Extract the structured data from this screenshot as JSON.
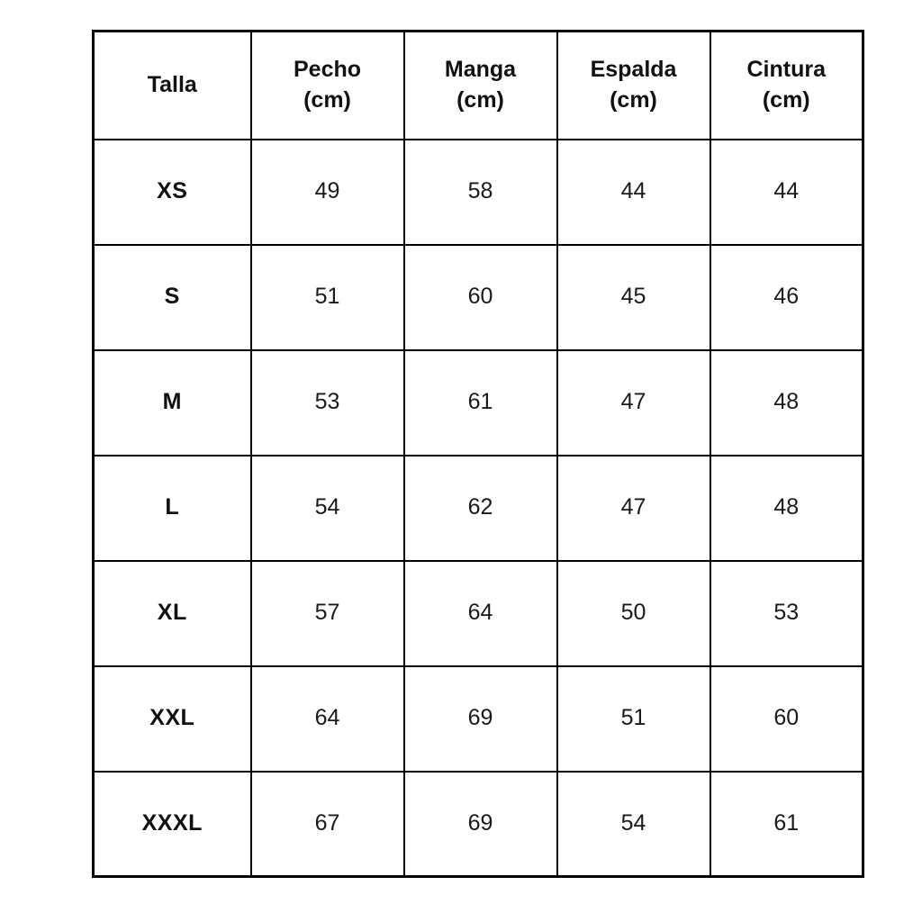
{
  "table": {
    "columns": [
      {
        "label": "Talla"
      },
      {
        "label": "Pecho\n(cm)"
      },
      {
        "label": "Manga\n(cm)"
      },
      {
        "label": "Espalda\n(cm)"
      },
      {
        "label": "Cintura\n(cm)"
      }
    ],
    "rows": [
      {
        "size": "XS",
        "values": [
          "49",
          "58",
          "44",
          "44"
        ]
      },
      {
        "size": "S",
        "values": [
          "51",
          "60",
          "45",
          "46"
        ]
      },
      {
        "size": "M",
        "values": [
          "53",
          "61",
          "47",
          "48"
        ]
      },
      {
        "size": "L",
        "values": [
          "54",
          "62",
          "47",
          "48"
        ]
      },
      {
        "size": "XL",
        "values": [
          "57",
          "64",
          "50",
          "53"
        ]
      },
      {
        "size": "XXL",
        "values": [
          "64",
          "69",
          "51",
          "60"
        ]
      },
      {
        "size": "XXXL",
        "values": [
          "67",
          "69",
          "54",
          "61"
        ]
      }
    ],
    "border_color": "#000000",
    "background_color": "#ffffff",
    "text_color": "#111111"
  }
}
